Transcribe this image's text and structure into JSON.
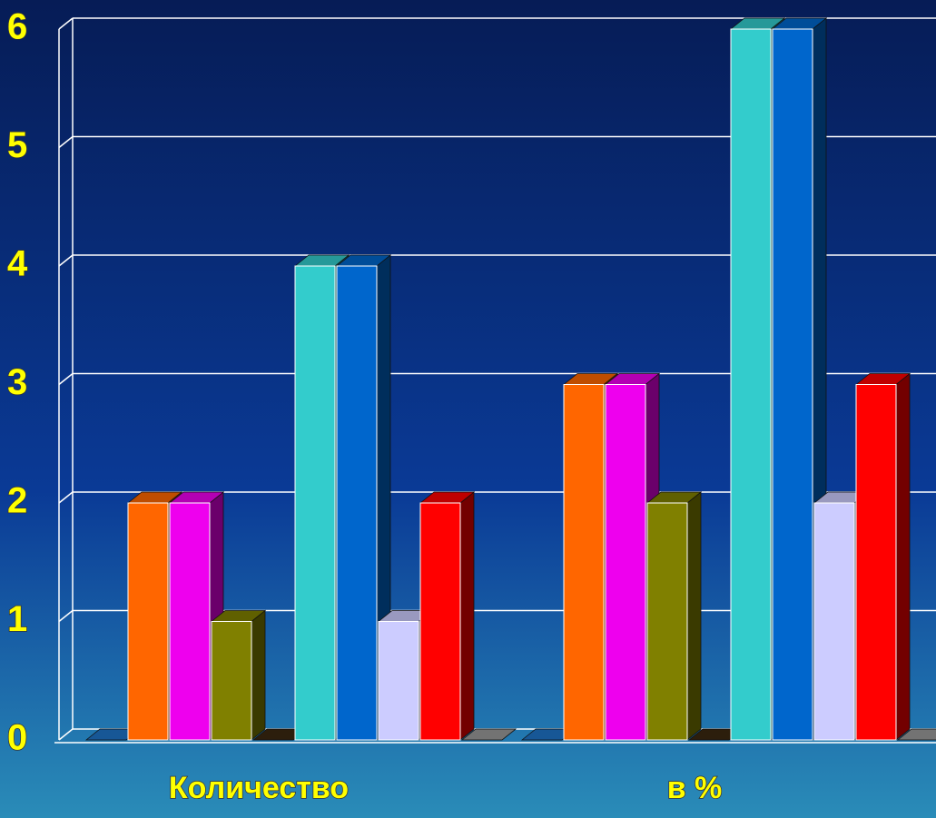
{
  "chart_data": {
    "type": "bar3d",
    "categories": [
      "Количество",
      "в %"
    ],
    "series": [
      {
        "color": "#1f74c8",
        "values": [
          0,
          0
        ]
      },
      {
        "color": "#ff6600",
        "values": [
          2,
          3
        ]
      },
      {
        "color": "#ee00ee",
        "values": [
          2,
          3
        ]
      },
      {
        "color": "#808000",
        "values": [
          1,
          2
        ]
      },
      {
        "color": "#3a2810",
        "values": [
          0,
          0
        ]
      },
      {
        "color": "#33cccc",
        "values": [
          4,
          6
        ]
      },
      {
        "color": "#0066cc",
        "values": [
          4,
          6
        ]
      },
      {
        "color": "#ccccff",
        "values": [
          1,
          2
        ]
      },
      {
        "color": "#ff0000",
        "values": [
          2,
          3
        ]
      },
      {
        "color": "#999999",
        "values": [
          0,
          0
        ]
      }
    ],
    "ylim": [
      0,
      6
    ],
    "yticks": [
      0,
      1,
      2,
      3,
      4,
      5,
      6
    ],
    "grid": true
  }
}
